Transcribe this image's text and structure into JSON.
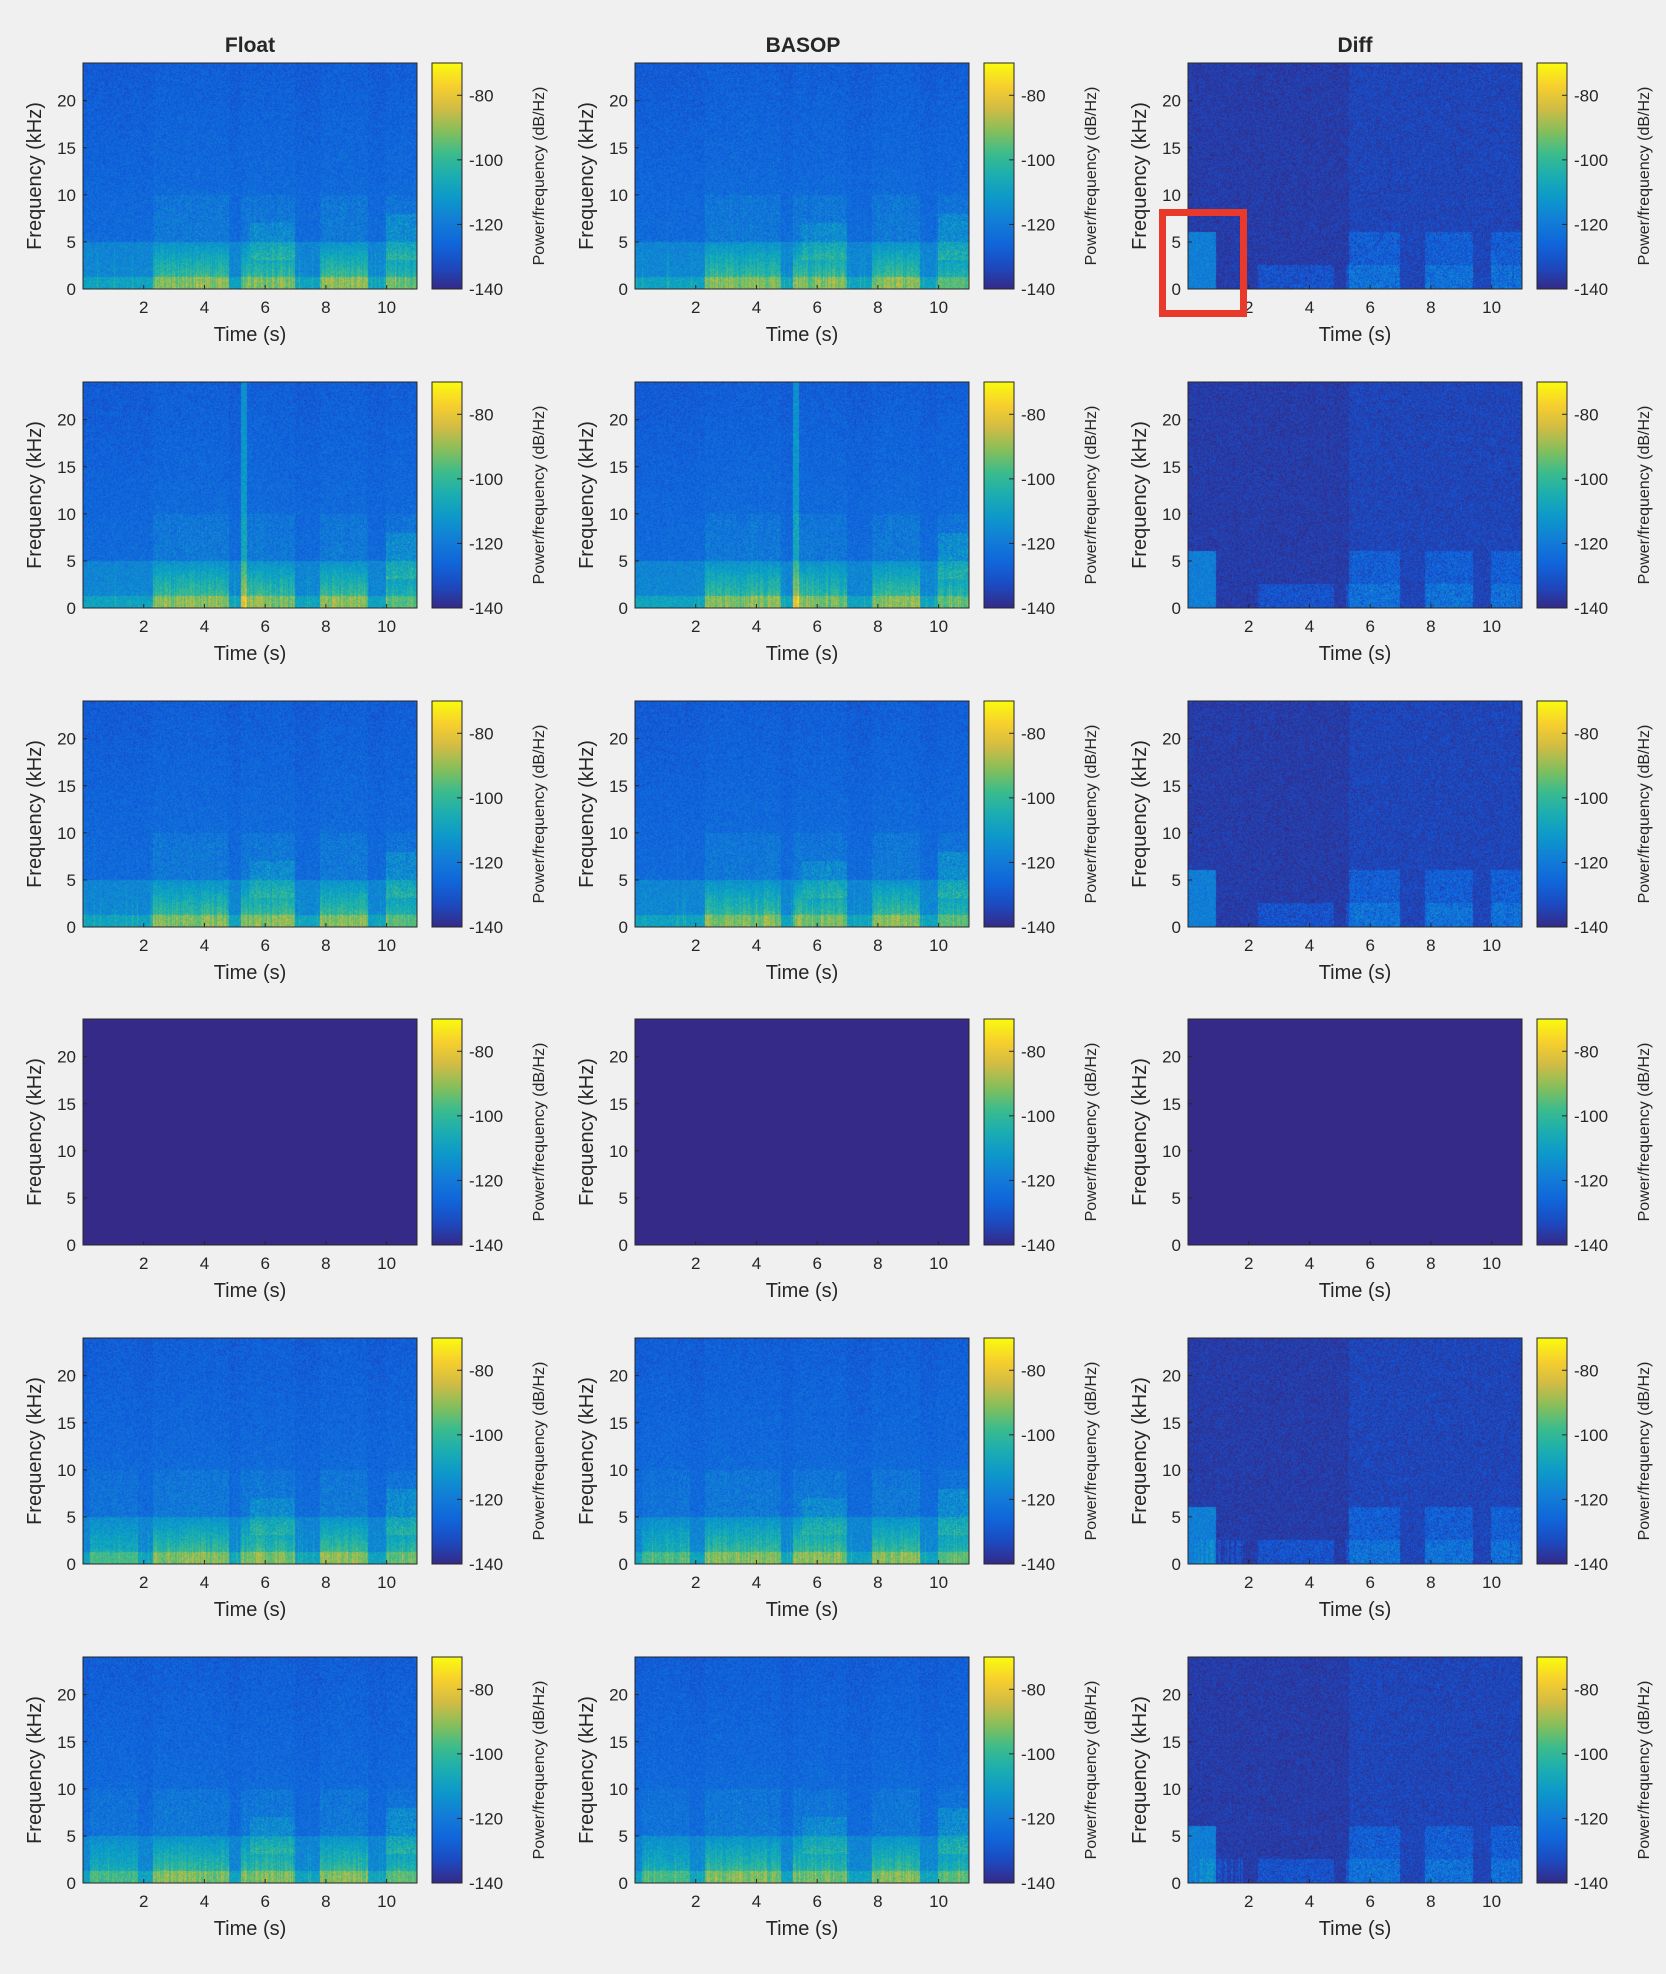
{
  "figure": {
    "column_titles": [
      "Float",
      "BASOP",
      "Diff"
    ],
    "background": "#f0f0f0",
    "colormap": "parula"
  },
  "chart_data": {
    "type": "heatmap",
    "grid": {
      "rows": 6,
      "cols": 3
    },
    "shared": {
      "xlabel": "Time (s)",
      "ylabel": "Frequency (kHz)",
      "colorbar_label": "Power/frequency (dB/Hz)",
      "xlim": [
        0,
        11
      ],
      "ylim": [
        0,
        24
      ],
      "xticks": [
        2,
        4,
        6,
        8,
        10
      ],
      "yticks": [
        0,
        5,
        10,
        15,
        20
      ],
      "clim": [
        -140,
        -70
      ],
      "cticks": [
        -140,
        -120,
        -100,
        -80
      ]
    },
    "panels": [
      {
        "row": 1,
        "col": 1,
        "title": "Float",
        "content": "spectrogram",
        "variant": 0
      },
      {
        "row": 1,
        "col": 2,
        "title": "BASOP",
        "content": "spectrogram",
        "variant": 0
      },
      {
        "row": 1,
        "col": 3,
        "title": "Diff",
        "content": "difference",
        "variant": 0
      },
      {
        "row": 2,
        "col": 1,
        "content": "spectrogram",
        "variant": 1
      },
      {
        "row": 2,
        "col": 2,
        "content": "spectrogram",
        "variant": 1
      },
      {
        "row": 2,
        "col": 3,
        "content": "difference",
        "variant": 1
      },
      {
        "row": 3,
        "col": 1,
        "content": "spectrogram",
        "variant": 0
      },
      {
        "row": 3,
        "col": 2,
        "content": "spectrogram",
        "variant": 0
      },
      {
        "row": 3,
        "col": 3,
        "content": "difference",
        "variant": 0
      },
      {
        "row": 4,
        "col": 1,
        "content": "silent",
        "level_db": -140
      },
      {
        "row": 4,
        "col": 2,
        "content": "silent",
        "level_db": -140
      },
      {
        "row": 4,
        "col": 3,
        "content": "silent",
        "level_db": -140
      },
      {
        "row": 5,
        "col": 1,
        "content": "spectrogram",
        "variant": 2
      },
      {
        "row": 5,
        "col": 2,
        "content": "spectrogram",
        "variant": 2
      },
      {
        "row": 5,
        "col": 3,
        "content": "difference",
        "variant": 2
      },
      {
        "row": 6,
        "col": 1,
        "content": "spectrogram",
        "variant": 3
      },
      {
        "row": 6,
        "col": 2,
        "content": "spectrogram",
        "variant": 3
      },
      {
        "row": 6,
        "col": 3,
        "content": "difference",
        "variant": 3
      }
    ],
    "annotation": {
      "type": "rectangle",
      "color": "#e8392a",
      "panel": [
        1,
        3
      ],
      "xrange": [
        -1,
        2
      ],
      "yrange": [
        -2,
        6
      ]
    }
  }
}
